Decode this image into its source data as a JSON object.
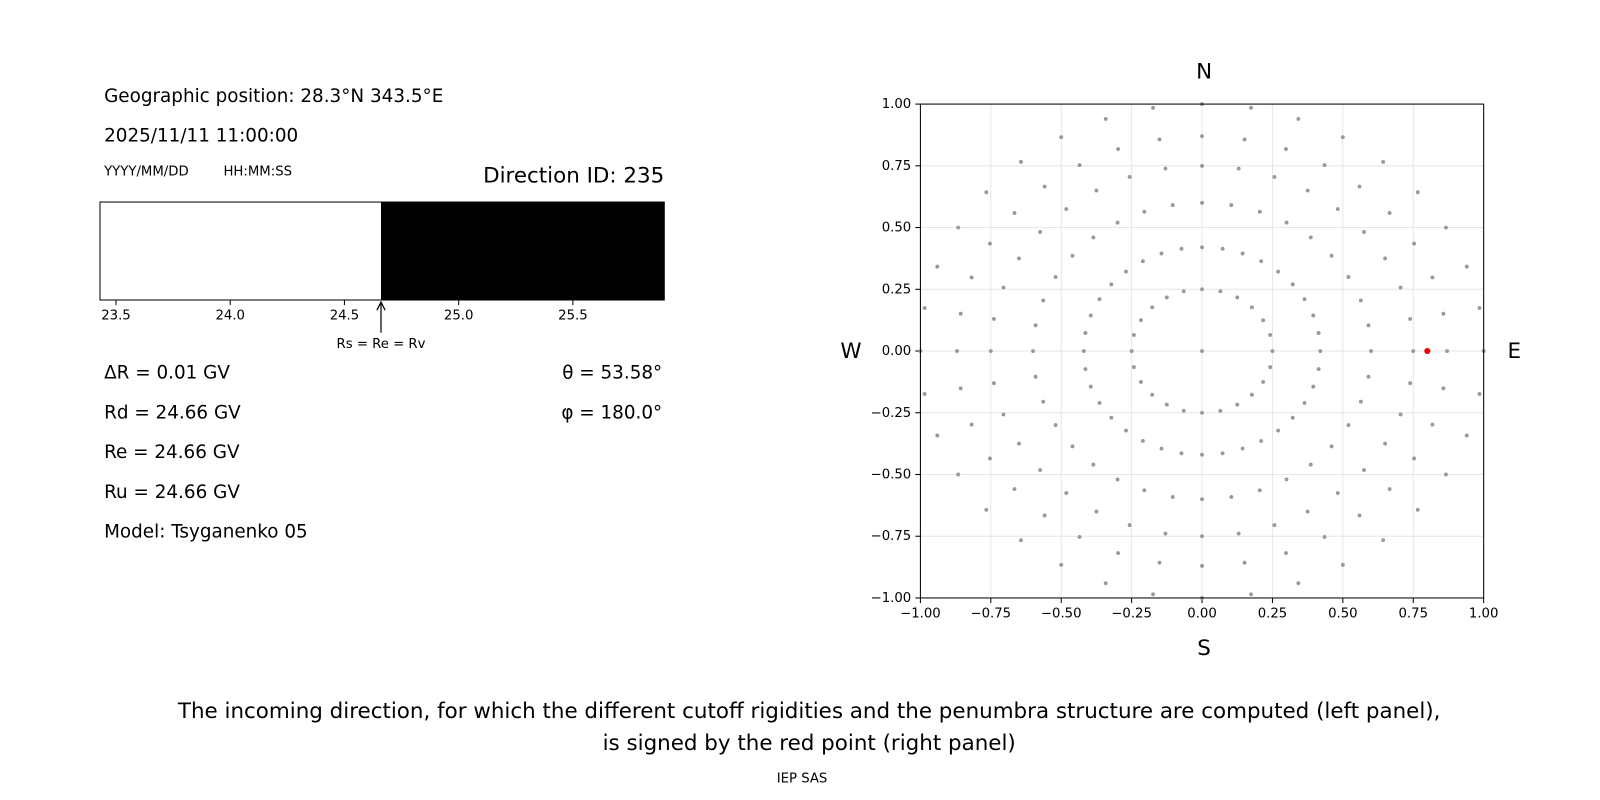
{
  "left_panel": {
    "geo": "Geographic position: 28.3°N 343.5°E",
    "datetime": "2025/11/11 11:00:00",
    "date_format": "YYYY/MM/DD",
    "time_format": "HH:MM:SS",
    "direction": "Direction ID: 235",
    "delta_r": "ΔR = 0.01 GV",
    "rd": "Rd = 24.66 GV",
    "re": "Re = 24.66 GV",
    "ru": "Ru = 24.66 GV",
    "model": "Model: Tsyganenko 05",
    "theta": "θ = 53.58°",
    "phi": "φ = 180.0°"
  },
  "chart_data": [
    {
      "type": "band",
      "xlim": [
        23.43,
        25.9
      ],
      "xticks": [
        23.5,
        {
          "value": 24,
          "label": "24.0"
        },
        24.5,
        {
          "value": 25,
          "label": "25.0"
        },
        25.5
      ],
      "boundaries": [
        24.66
      ],
      "colors": [
        "#ffffff",
        "#000000"
      ],
      "annotation": "Rs = Re = Rv"
    },
    {
      "type": "scatter",
      "grid": true,
      "xlim": [
        -1,
        1
      ],
      "ylim": [
        -1,
        1
      ],
      "xticks": [
        {
          "value": -1,
          "label": "−1.00"
        },
        {
          "value": -0.75,
          "label": "−0.75"
        },
        {
          "value": -0.5,
          "label": "−0.50"
        },
        {
          "value": -0.25,
          "label": "−0.25"
        },
        {
          "value": 0,
          "label": "0.00"
        },
        {
          "value": 0.25,
          "label": "0.25"
        },
        {
          "value": 0.5,
          "label": "0.50"
        },
        {
          "value": 0.75,
          "label": "0.75"
        },
        {
          "value": 1,
          "label": "1.00"
        }
      ],
      "yticks": [
        {
          "value": -1,
          "label": "−1.00"
        },
        {
          "value": -0.75,
          "label": "−0.75"
        },
        {
          "value": -0.5,
          "label": "−0.50"
        },
        {
          "value": -0.25,
          "label": "−0.25"
        },
        {
          "value": 0,
          "label": "0.00"
        },
        {
          "value": 0.25,
          "label": "0.25"
        },
        {
          "value": 0.5,
          "label": "0.50"
        },
        {
          "value": 0.75,
          "label": "0.75"
        },
        {
          "value": 1,
          "label": "1.00"
        }
      ],
      "compass": {
        "north": "N",
        "south": "S",
        "west": "W",
        "east": "E"
      },
      "series": [
        {
          "color": "#999999",
          "x": [
            0,
            0.25,
            0.242,
            0.217,
            0.177,
            0.125,
            0.065,
            0,
            -0.065,
            -0.125,
            -0.177,
            -0.217,
            -0.242,
            -0.25,
            -0.242,
            -0.217,
            -0.177,
            -0.125,
            -0.065,
            0,
            0.065,
            0.125,
            0.177,
            0.217,
            0.242,
            0.42,
            0.414,
            0.395,
            0.364,
            0.322,
            0.27,
            0.21,
            0.144,
            0.073,
            0,
            -0.073,
            -0.144,
            -0.21,
            -0.27,
            -0.322,
            -0.364,
            -0.395,
            -0.414,
            -0.42,
            -0.414,
            -0.395,
            -0.364,
            -0.322,
            -0.27,
            -0.21,
            -0.144,
            -0.073,
            0,
            0.073,
            0.144,
            0.21,
            0.27,
            0.322,
            0.364,
            0.395,
            0.414,
            0.6,
            0.591,
            0.564,
            0.52,
            0.46,
            0.386,
            0.3,
            0.205,
            0.104,
            0,
            -0.104,
            -0.205,
            -0.3,
            -0.386,
            -0.46,
            -0.52,
            -0.564,
            -0.591,
            -0.6,
            -0.591,
            -0.564,
            -0.52,
            -0.46,
            -0.386,
            -0.3,
            -0.205,
            -0.104,
            0,
            0.104,
            0.205,
            0.3,
            0.386,
            0.46,
            0.52,
            0.564,
            0.591,
            0.75,
            0.739,
            0.705,
            0.65,
            0.575,
            0.482,
            0.375,
            0.257,
            0.13,
            0,
            -0.13,
            -0.257,
            -0.375,
            -0.482,
            -0.575,
            -0.65,
            -0.705,
            -0.739,
            -0.75,
            -0.739,
            -0.705,
            -0.65,
            -0.575,
            -0.482,
            -0.375,
            -0.257,
            -0.13,
            0,
            0.13,
            0.257,
            0.375,
            0.482,
            0.575,
            0.65,
            0.705,
            0.739,
            0.87,
            0.857,
            0.818,
            0.753,
            0.666,
            0.559,
            0.435,
            0.298,
            0.151,
            0,
            -0.151,
            -0.298,
            -0.435,
            -0.559,
            -0.666,
            -0.753,
            -0.818,
            -0.857,
            -0.87,
            -0.857,
            -0.818,
            -0.753,
            -0.666,
            -0.559,
            -0.435,
            -0.298,
            -0.151,
            0,
            0.151,
            0.298,
            0.435,
            0.559,
            0.666,
            0.753,
            0.818,
            0.857,
            1,
            0.985,
            0.94,
            0.866,
            0.766,
            0.643,
            0.5,
            0.342,
            0.174,
            0,
            -0.174,
            -0.342,
            -0.5,
            -0.643,
            -0.766,
            -0.866,
            -0.94,
            -0.985,
            -1,
            -0.985,
            -0.94,
            -0.866,
            -0.766,
            -0.643,
            -0.5,
            -0.342,
            -0.174,
            0,
            0.174,
            0.342,
            0.5,
            0.643,
            0.766,
            0.866,
            0.94,
            0.985
          ],
          "y": [
            0,
            0,
            0.065,
            0.125,
            0.177,
            0.217,
            0.242,
            0.25,
            0.242,
            0.217,
            0.177,
            0.125,
            0.065,
            0,
            -0.065,
            -0.125,
            -0.177,
            -0.217,
            -0.242,
            -0.25,
            -0.242,
            -0.217,
            -0.177,
            -0.125,
            -0.065,
            0,
            0.073,
            0.144,
            0.21,
            0.27,
            0.322,
            0.364,
            0.395,
            0.414,
            0.42,
            0.414,
            0.395,
            0.364,
            0.322,
            0.27,
            0.21,
            0.144,
            0.073,
            0,
            -0.073,
            -0.144,
            -0.21,
            -0.27,
            -0.322,
            -0.364,
            -0.395,
            -0.414,
            -0.42,
            -0.414,
            -0.395,
            -0.364,
            -0.322,
            -0.27,
            -0.21,
            -0.144,
            -0.073,
            0,
            0.104,
            0.205,
            0.3,
            0.386,
            0.46,
            0.52,
            0.564,
            0.591,
            0.6,
            0.591,
            0.564,
            0.52,
            0.46,
            0.386,
            0.3,
            0.205,
            0.104,
            0,
            -0.104,
            -0.205,
            -0.3,
            -0.386,
            -0.46,
            -0.52,
            -0.564,
            -0.591,
            -0.6,
            -0.591,
            -0.564,
            -0.52,
            -0.46,
            -0.386,
            -0.3,
            -0.205,
            -0.104,
            0,
            0.13,
            0.257,
            0.375,
            0.482,
            0.575,
            0.65,
            0.705,
            0.739,
            0.75,
            0.739,
            0.705,
            0.65,
            0.575,
            0.482,
            0.375,
            0.257,
            0.13,
            0,
            -0.13,
            -0.257,
            -0.375,
            -0.482,
            -0.575,
            -0.65,
            -0.705,
            -0.739,
            -0.75,
            -0.739,
            -0.705,
            -0.65,
            -0.575,
            -0.482,
            -0.375,
            -0.257,
            -0.13,
            0,
            0.151,
            0.298,
            0.435,
            0.559,
            0.666,
            0.753,
            0.818,
            0.857,
            0.87,
            0.857,
            0.818,
            0.753,
            0.666,
            0.559,
            0.435,
            0.298,
            0.151,
            0,
            -0.151,
            -0.298,
            -0.435,
            -0.559,
            -0.666,
            -0.753,
            -0.818,
            -0.857,
            -0.87,
            -0.857,
            -0.818,
            -0.753,
            -0.666,
            -0.559,
            -0.435,
            -0.298,
            -0.151,
            0,
            0.174,
            0.342,
            0.5,
            0.643,
            0.766,
            0.866,
            0.94,
            0.985,
            1,
            0.985,
            0.94,
            0.866,
            0.766,
            0.643,
            0.5,
            0.342,
            0.174,
            0,
            -0.174,
            -0.342,
            -0.5,
            -0.643,
            -0.766,
            -0.866,
            -0.94,
            -0.985,
            -1,
            -0.985,
            -0.94,
            -0.866,
            -0.766,
            -0.643,
            -0.5,
            -0.342,
            -0.174
          ]
        },
        {
          "color": "#ee0000",
          "x": [
            0.8
          ],
          "y": [
            0
          ]
        }
      ]
    }
  ],
  "caption": [
    "The incoming direction, for which the different cutoff rigidities and the penumbra structure are computed (left panel),",
    "is signed by the red point (right panel)"
  ],
  "footer": "IEP SAS"
}
